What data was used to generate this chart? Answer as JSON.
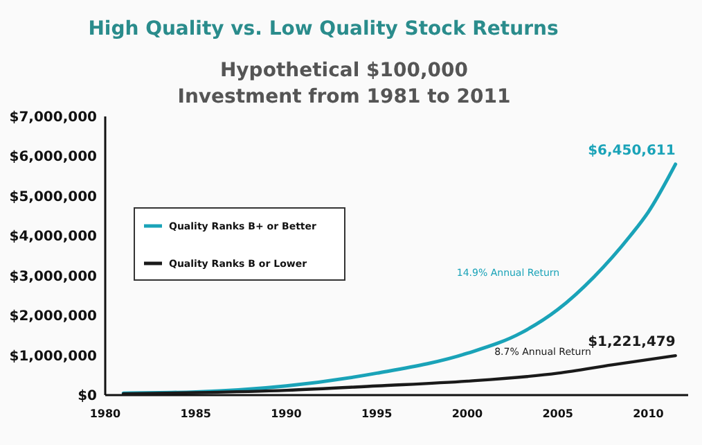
{
  "chart_data": {
    "type": "line",
    "title": "High Quality vs. Low Quality Stock Returns",
    "subtitle": "Hypothetical $100,000\nInvestment from 1981 to 2011",
    "xlim": [
      1980,
      2012.2
    ],
    "xticks": [
      1980,
      1985,
      1990,
      1995,
      2000,
      2005,
      2010
    ],
    "ylim": [
      0,
      7000000
    ],
    "yticks": [
      {
        "value": 0,
        "label": "$0"
      },
      {
        "value": 1000000,
        "label": "$1,000,000"
      },
      {
        "value": 2000000,
        "label": "$2,000,000"
      },
      {
        "value": 3000000,
        "label": "$3,000,000"
      },
      {
        "value": 4000000,
        "label": "$4,000,000"
      },
      {
        "value": 5000000,
        "label": "$5,000,000"
      },
      {
        "value": 6000000,
        "label": "$6,000,000"
      },
      {
        "value": 7000000,
        "label": "$7,000,000"
      }
    ],
    "grid": false,
    "legend": "left",
    "series": [
      {
        "name": "Quality Ranks B+ or Better",
        "color": "#1aa3b8",
        "x": [
          1981,
          1985,
          1990,
          1995,
          2000,
          2003,
          2005,
          2007,
          2009,
          2010,
          2011.5
        ],
        "values": [
          50000,
          80000,
          230000,
          550000,
          1050000,
          1570000,
          2150000,
          2970000,
          4000000,
          4600000,
          5800000
        ]
      },
      {
        "name": "Quality Ranks B or Lower",
        "color": "#1a1a1a",
        "x": [
          1981,
          1985,
          1990,
          1995,
          2000,
          2005,
          2008,
          2011.5
        ],
        "values": [
          30000,
          60000,
          120000,
          230000,
          350000,
          550000,
          760000,
          990000
        ]
      }
    ],
    "annotations": [
      {
        "text": "$6,450,611",
        "x": 2011.5,
        "y": 5800000
      },
      {
        "text": "$1,221,479",
        "x": 2011.5,
        "y": 990000
      },
      "14.9% Annual Return",
      "8.7% Annual Return"
    ]
  }
}
